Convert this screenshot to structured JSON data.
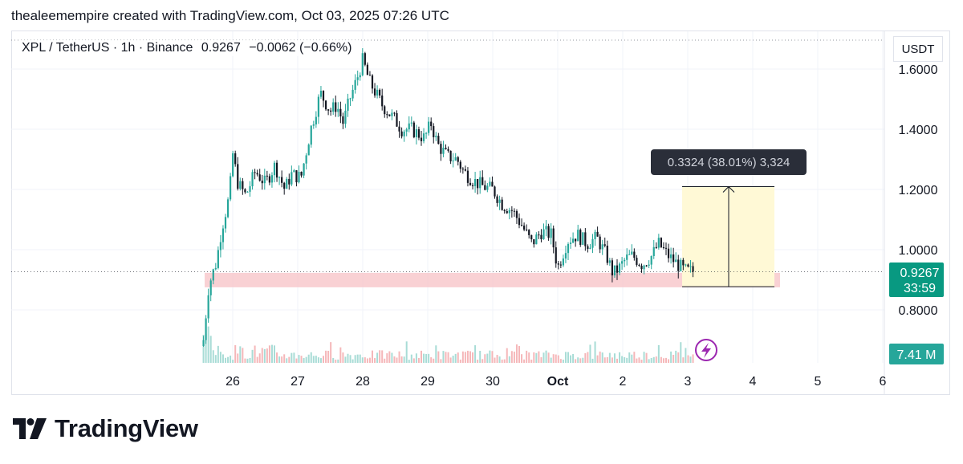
{
  "caption": "thealeemempire created with TradingView.com, Oct 03, 2025 07:26 UTC",
  "legend": {
    "symbol": "XPL / TetherUS · 1h · Binance",
    "price": "0.9267",
    "change": "−0.0062 (−0.66%)"
  },
  "currency_label": "USDT",
  "price_badge": {
    "value": "0.9267",
    "countdown": "33:59",
    "color": "#089981"
  },
  "volume_badge": {
    "value": "7.41 M",
    "color": "#26a69a"
  },
  "measure_label": "0.3324 (38.01%) 3,324",
  "brand": "TradingView",
  "colors": {
    "up": "#26a69a",
    "down": "#131722",
    "support_zone": "#f7c1c5",
    "target_zone": "#fff9d6"
  },
  "chart_data": {
    "type": "candlestick",
    "y_axis": {
      "ticks": [
        "0.8000",
        "1.0000",
        "1.2000",
        "1.4000",
        "1.6000"
      ],
      "range": [
        0.63,
        1.73
      ]
    },
    "x_axis": {
      "ticks": [
        "26",
        "27",
        "28",
        "29",
        "30",
        "Oct",
        "2",
        "3",
        "4",
        "5",
        "6"
      ]
    },
    "last_price": 0.9267,
    "support_zone": [
      0.875,
      0.923
    ],
    "measure": {
      "from": 0.877,
      "to": 1.2094,
      "change": 0.3324,
      "percent": 38.01
    },
    "close_path": [
      [
        25.55,
        0.7
      ],
      [
        25.63,
        0.88
      ],
      [
        25.75,
        0.96
      ],
      [
        25.83,
        1.07
      ],
      [
        25.95,
        1.18
      ],
      [
        26.0,
        1.32
      ],
      [
        26.08,
        1.22
      ],
      [
        26.2,
        1.18
      ],
      [
        26.35,
        1.26
      ],
      [
        26.5,
        1.22
      ],
      [
        26.65,
        1.28
      ],
      [
        26.8,
        1.2
      ],
      [
        26.9,
        1.25
      ],
      [
        27.05,
        1.24
      ],
      [
        27.2,
        1.4
      ],
      [
        27.35,
        1.52
      ],
      [
        27.5,
        1.46
      ],
      [
        27.6,
        1.48
      ],
      [
        27.7,
        1.42
      ],
      [
        27.8,
        1.5
      ],
      [
        27.9,
        1.56
      ],
      [
        28.0,
        1.63
      ],
      [
        28.1,
        1.56
      ],
      [
        28.2,
        1.52
      ],
      [
        28.3,
        1.48
      ],
      [
        28.5,
        1.43
      ],
      [
        28.6,
        1.4
      ],
      [
        28.75,
        1.4
      ],
      [
        28.95,
        1.37
      ],
      [
        29.05,
        1.42
      ],
      [
        29.15,
        1.35
      ],
      [
        29.3,
        1.31
      ],
      [
        29.45,
        1.3
      ],
      [
        29.55,
        1.26
      ],
      [
        29.7,
        1.23
      ],
      [
        29.85,
        1.21
      ],
      [
        30.0,
        1.2
      ],
      [
        30.15,
        1.15
      ],
      [
        30.3,
        1.13
      ],
      [
        30.45,
        1.08
      ],
      [
        30.6,
        1.02
      ],
      [
        30.75,
        1.06
      ],
      [
        30.9,
        1.05
      ],
      [
        31.0,
        0.94
      ],
      [
        31.15,
        1.03
      ],
      [
        31.3,
        1.05
      ],
      [
        31.45,
        1.02
      ],
      [
        31.6,
        1.04
      ],
      [
        31.75,
        0.98
      ],
      [
        31.85,
        0.92
      ],
      [
        31.95,
        0.94
      ],
      [
        32.05,
        0.97
      ],
      [
        32.15,
        0.98
      ],
      [
        32.3,
        0.95
      ],
      [
        32.45,
        0.98
      ],
      [
        32.55,
        1.02
      ],
      [
        32.7,
        0.98
      ],
      [
        32.85,
        0.95
      ],
      [
        32.95,
        0.93
      ],
      [
        33.1,
        0.9267
      ]
    ],
    "volume_bars": 260,
    "volume_max": 7.41
  }
}
